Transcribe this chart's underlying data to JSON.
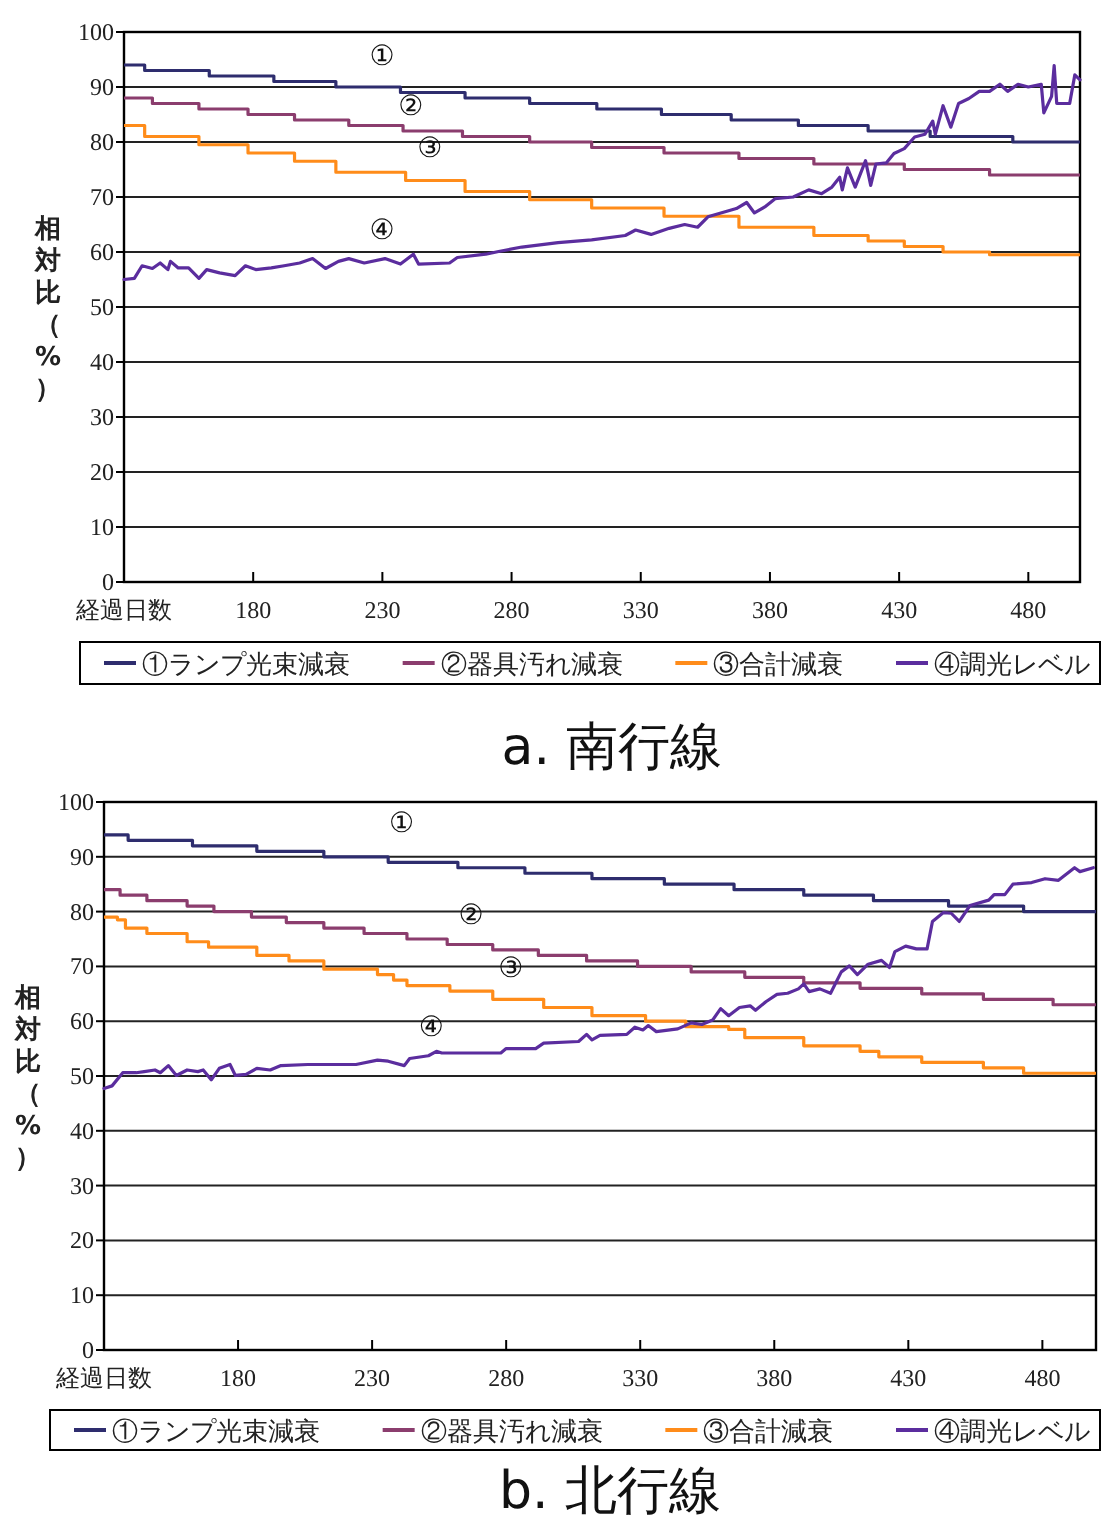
{
  "chart_data": [
    {
      "type": "line",
      "title": "a. 南行線",
      "xlabel": "経過日数",
      "ylabel": "相対比（%）",
      "xlim": [
        130,
        500
      ],
      "xticks": [
        180,
        230,
        280,
        330,
        380,
        430,
        480
      ],
      "ylim": [
        0,
        100
      ],
      "yticks": [
        0,
        10,
        20,
        30,
        40,
        50,
        60,
        70,
        80,
        90,
        100
      ],
      "grid": "y",
      "legend": "bottom",
      "annotations": [
        "①",
        "②",
        "③",
        "④"
      ],
      "series": [
        {
          "name": "①ランプ光束減衰",
          "color": "#2e2d6e",
          "type": "step",
          "x": [
            130,
            138,
            163,
            188,
            212,
            237,
            262,
            287,
            313,
            338,
            365,
            391,
            418,
            442,
            474,
            500
          ],
          "values": [
            94,
            93,
            92,
            91,
            90,
            89,
            88,
            87,
            86,
            85,
            84,
            83,
            82,
            81,
            80,
            80
          ]
        },
        {
          "name": "②器具汚れ減衰",
          "color": "#8b3d6e",
          "type": "step",
          "x": [
            130,
            141,
            159,
            178,
            196,
            217,
            238,
            261,
            287,
            311,
            339,
            368,
            397,
            432,
            465,
            500
          ],
          "values": [
            88,
            87,
            86,
            85,
            84,
            83,
            82,
            81,
            80,
            79,
            78,
            77,
            76,
            75,
            74,
            74
          ]
        },
        {
          "name": "③合計減衰",
          "color": "#ff8c1a",
          "type": "step",
          "x": [
            130,
            138,
            159,
            178,
            196,
            212,
            239,
            262,
            287,
            311,
            339,
            368,
            397,
            418,
            432,
            447,
            465,
            500
          ],
          "values": [
            83,
            81,
            79.5,
            78,
            76.5,
            74.5,
            73,
            71,
            69.5,
            68,
            66.5,
            64.5,
            63,
            62,
            61,
            60,
            59.5,
            59.5
          ]
        },
        {
          "name": "④調光レベル",
          "color": "#5b2d9e",
          "type": "line",
          "x": [
            130,
            134,
            137,
            141,
            144,
            147,
            148,
            151,
            155,
            159,
            162,
            167,
            173,
            177,
            181,
            187,
            192,
            198,
            203,
            208,
            213,
            217,
            223,
            231,
            237,
            242,
            244,
            256,
            259,
            270,
            275,
            284,
            298,
            311,
            324,
            328,
            334,
            341,
            347,
            352,
            356,
            361,
            367,
            371,
            374,
            378,
            382,
            389,
            395,
            400,
            404,
            407,
            408,
            410,
            413,
            417,
            419,
            421,
            425,
            428,
            432,
            436,
            440,
            443,
            444,
            447,
            450,
            453,
            457,
            461,
            465,
            469,
            472,
            476,
            480,
            485,
            486,
            489,
            490,
            491,
            496,
            498,
            500
          ],
          "values": [
            55,
            55.2,
            57.5,
            57,
            58,
            56.8,
            58.3,
            57.1,
            57.1,
            55.2,
            56.8,
            56.2,
            55.7,
            57.5,
            56.8,
            57.1,
            57.5,
            58,
            58.8,
            57,
            58.3,
            58.8,
            58,
            58.8,
            57.8,
            59.6,
            57.8,
            58,
            59,
            59.6,
            60.1,
            60.9,
            61.7,
            62.2,
            63,
            64,
            63.2,
            64.3,
            65,
            64.5,
            66.4,
            67.1,
            67.9,
            69,
            67.1,
            68.2,
            69.7,
            70,
            71.3,
            70.6,
            71.8,
            73.6,
            71.3,
            75.3,
            71.8,
            76.6,
            72.1,
            76,
            76.2,
            77.9,
            78.8,
            80.9,
            81.4,
            83.8,
            81.4,
            86.6,
            82.7,
            87,
            87.9,
            89.2,
            89.2,
            90.5,
            89.2,
            90.5,
            90,
            90.5,
            85.3,
            88.3,
            93.9,
            87,
            87,
            92.2,
            91.3
          ]
        }
      ]
    },
    {
      "type": "line",
      "title": "b. 北行線",
      "xlabel": "経過日数",
      "ylabel": "相対比（%）",
      "xlim": [
        130,
        500
      ],
      "xticks": [
        180,
        230,
        280,
        330,
        380,
        430,
        480
      ],
      "ylim": [
        0,
        100
      ],
      "yticks": [
        0,
        10,
        20,
        30,
        40,
        50,
        60,
        70,
        80,
        90,
        100
      ],
      "grid": "y",
      "legend": "bottom",
      "annotations": [
        "①",
        "②",
        "③",
        "④"
      ],
      "series": [
        {
          "name": "①ランプ光束減衰",
          "color": "#2e2d6e",
          "type": "step",
          "x": [
            130,
            139,
            163,
            187,
            212,
            236,
            262,
            287,
            312,
            339,
            365,
            391,
            417,
            445,
            473,
            500
          ],
          "values": [
            94,
            93,
            92,
            91,
            90,
            89,
            88,
            87,
            86,
            85,
            84,
            83,
            82,
            81,
            80,
            80
          ]
        },
        {
          "name": "②器具汚れ減衰",
          "color": "#8b3d6e",
          "type": "step",
          "x": [
            130,
            136,
            146,
            161,
            171,
            185,
            198,
            212,
            227,
            243,
            258,
            275,
            292,
            310,
            329,
            349,
            369,
            391,
            412,
            435,
            458,
            484,
            500
          ],
          "values": [
            84,
            83,
            82,
            81,
            80,
            79,
            78,
            77,
            76,
            75,
            74,
            73,
            72,
            71,
            70,
            69,
            68,
            67,
            66,
            65,
            64,
            63,
            63
          ]
        },
        {
          "name": "③合計減衰",
          "color": "#ff8c1a",
          "type": "step",
          "x": [
            130,
            135,
            138,
            146,
            161,
            169,
            187,
            199,
            212,
            232,
            238,
            243,
            259,
            275,
            294,
            312,
            332,
            347,
            363,
            369,
            391,
            412,
            419,
            435,
            458,
            473,
            500
          ],
          "values": [
            79,
            78.5,
            77,
            76,
            74.5,
            73.5,
            72,
            71,
            69.5,
            68.5,
            67.5,
            66.5,
            65.5,
            64,
            62.5,
            61,
            60,
            59,
            58.5,
            57,
            55.5,
            54.5,
            53.5,
            52.5,
            51.5,
            50.5,
            50.5
          ]
        },
        {
          "name": "④調光レベル",
          "color": "#5b2d9e",
          "type": "line",
          "x": [
            130,
            133,
            137,
            142,
            145,
            149,
            151,
            154,
            157,
            161,
            165,
            167,
            170,
            173,
            177,
            179,
            183,
            187,
            192,
            196,
            206,
            219,
            224,
            232,
            236,
            242,
            244,
            251,
            254,
            256,
            262,
            278,
            280,
            291,
            294,
            307,
            310,
            312,
            315,
            325,
            328,
            331,
            333,
            336,
            344,
            349,
            353,
            357,
            360,
            363,
            367,
            371,
            373,
            377,
            381,
            385,
            389,
            391,
            393,
            397,
            401,
            405,
            408,
            411,
            415,
            420,
            423,
            425,
            429,
            433,
            437,
            439,
            443,
            446,
            449,
            453,
            460,
            462,
            466,
            469,
            476,
            481,
            486,
            492,
            494,
            499
          ],
          "values": [
            47.7,
            48.2,
            50.6,
            50.6,
            50.8,
            51.1,
            50.6,
            51.9,
            50.1,
            51.1,
            50.8,
            51.1,
            49.3,
            51.4,
            52.1,
            50.1,
            50.3,
            51.4,
            51.1,
            51.9,
            52.1,
            52.1,
            52.1,
            52.9,
            52.7,
            51.9,
            53.2,
            53.7,
            54.5,
            54.2,
            54.2,
            54.2,
            55,
            55,
            56,
            56.3,
            57.6,
            56.6,
            57.4,
            57.6,
            58.9,
            58.4,
            59.2,
            58.1,
            58.6,
            59.7,
            59.4,
            60.2,
            62.3,
            61,
            62.5,
            62.8,
            62,
            63.6,
            64.9,
            65.1,
            65.9,
            66.8,
            65.4,
            65.9,
            65.1,
            69,
            70.1,
            68.5,
            70.4,
            71.1,
            69.8,
            72.7,
            73.7,
            73.2,
            73.2,
            78.2,
            79.8,
            79.7,
            78.2,
            81.1,
            82.1,
            83.1,
            83.1,
            85,
            85.3,
            86,
            85.7,
            88,
            87.3,
            88
          ]
        }
      ]
    }
  ]
}
